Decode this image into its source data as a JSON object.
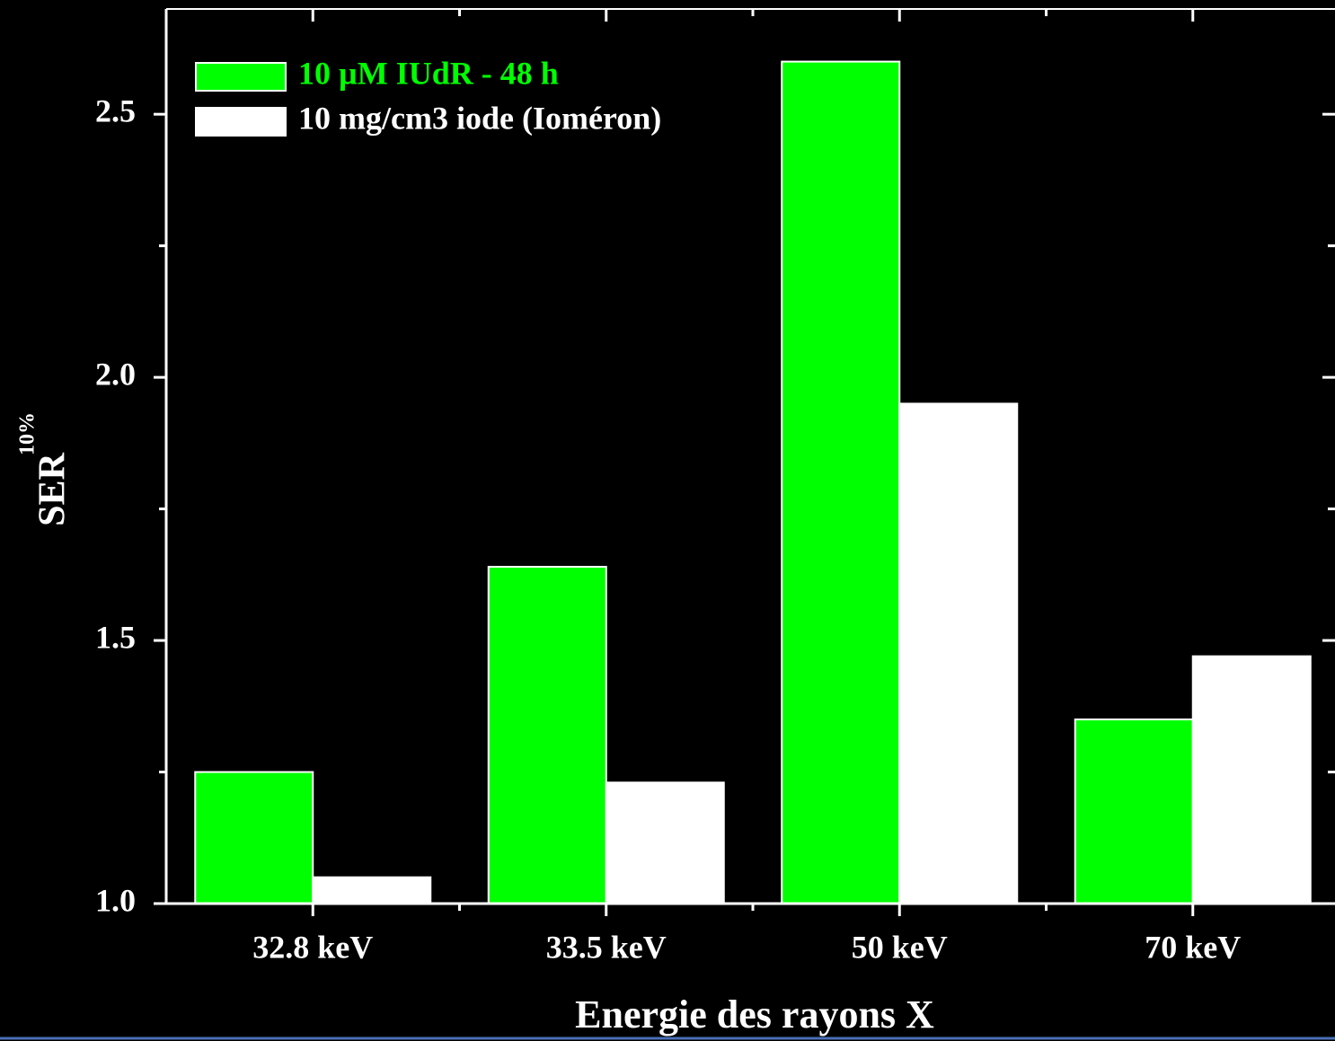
{
  "chart_data": {
    "type": "bar",
    "xlabel": "Energie des rayons X",
    "ylabel": "SER",
    "ylabel_superscript": "10%",
    "categories": [
      "32.8 keV",
      "33.5 keV",
      "50 keV",
      "70 keV"
    ],
    "series": [
      {
        "name": "10 µM IUdR - 48 h",
        "color": "#00ff00",
        "values": [
          1.25,
          1.64,
          2.6,
          1.35
        ]
      },
      {
        "name": "10 mg/cm3 iode (Ioméron)",
        "color": "#ffffff",
        "values": [
          1.05,
          1.23,
          1.95,
          1.47
        ]
      }
    ],
    "ylim": [
      1.0,
      2.7
    ],
    "yticks": [
      {
        "value": 1.0,
        "label": "1.0"
      },
      {
        "value": 1.5,
        "label": "1.5"
      },
      {
        "value": 2.0,
        "label": "2.0"
      },
      {
        "value": 2.5,
        "label": "2.5"
      }
    ],
    "minor_yticks": [
      1.25,
      1.75,
      2.25
    ],
    "legend": "upper left"
  }
}
